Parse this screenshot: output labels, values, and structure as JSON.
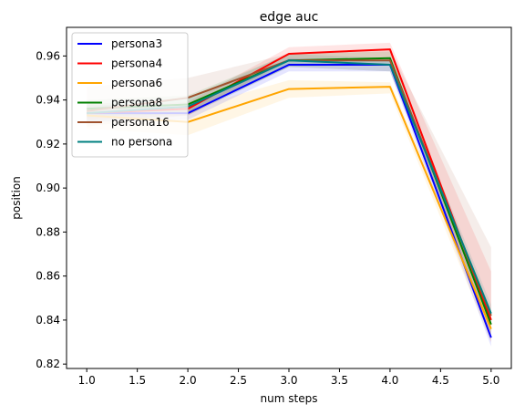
{
  "chart_data": {
    "type": "line",
    "title": "edge auc",
    "xlabel": "num steps",
    "ylabel": "position",
    "x": [
      1.0,
      2.0,
      3.0,
      4.0,
      5.0
    ],
    "xlim": [
      0.8,
      5.2
    ],
    "ylim": [
      0.818,
      0.973
    ],
    "xticks": [
      "1.0",
      "1.5",
      "2.0",
      "2.5",
      "3.0",
      "3.5",
      "4.0",
      "4.5",
      "5.0"
    ],
    "yticks": [
      "0.82",
      "0.84",
      "0.86",
      "0.88",
      "0.90",
      "0.92",
      "0.94",
      "0.96"
    ],
    "grid": false,
    "legend_position": "top-left",
    "series": [
      {
        "name": "persona3",
        "color": "#0000ff",
        "values": [
          0.934,
          0.934,
          0.956,
          0.956,
          0.832
        ],
        "band": [
          [
            0.93,
            0.938
          ],
          [
            0.931,
            0.937
          ],
          [
            0.953,
            0.959
          ],
          [
            0.953,
            0.958
          ],
          [
            0.828,
            0.836
          ]
        ]
      },
      {
        "name": "persona4",
        "color": "#ff0000",
        "values": [
          0.934,
          0.936,
          0.961,
          0.963,
          0.84
        ],
        "band": [
          [
            0.931,
            0.937
          ],
          [
            0.933,
            0.939
          ],
          [
            0.958,
            0.964
          ],
          [
            0.959,
            0.966
          ],
          [
            0.83,
            0.862
          ]
        ]
      },
      {
        "name": "persona6",
        "color": "#ffa500",
        "values": [
          0.933,
          0.93,
          0.945,
          0.946,
          0.836
        ],
        "band": [
          [
            0.927,
            0.939
          ],
          [
            0.924,
            0.936
          ],
          [
            0.941,
            0.949
          ],
          [
            0.943,
            0.948
          ],
          [
            0.83,
            0.842
          ]
        ]
      },
      {
        "name": "persona8",
        "color": "#008000",
        "values": [
          0.936,
          0.938,
          0.958,
          0.959,
          0.838
        ],
        "band": [
          [
            0.932,
            0.94
          ],
          [
            0.934,
            0.942
          ],
          [
            0.955,
            0.961
          ],
          [
            0.956,
            0.962
          ],
          [
            0.834,
            0.842
          ]
        ]
      },
      {
        "name": "persona16",
        "color": "#a0522d",
        "values": [
          0.935,
          0.941,
          0.958,
          0.958,
          0.842
        ],
        "band": [
          [
            0.928,
            0.946
          ],
          [
            0.933,
            0.95
          ],
          [
            0.955,
            0.961
          ],
          [
            0.953,
            0.963
          ],
          [
            0.835,
            0.873
          ]
        ]
      },
      {
        "name": "no persona",
        "color": "#008080",
        "values": [
          0.934,
          0.937,
          0.958,
          0.956,
          0.843
        ],
        "band": [
          [
            0.93,
            0.938
          ],
          [
            0.933,
            0.941
          ],
          [
            0.955,
            0.961
          ],
          [
            0.953,
            0.959
          ],
          [
            0.839,
            0.847
          ]
        ]
      }
    ]
  }
}
